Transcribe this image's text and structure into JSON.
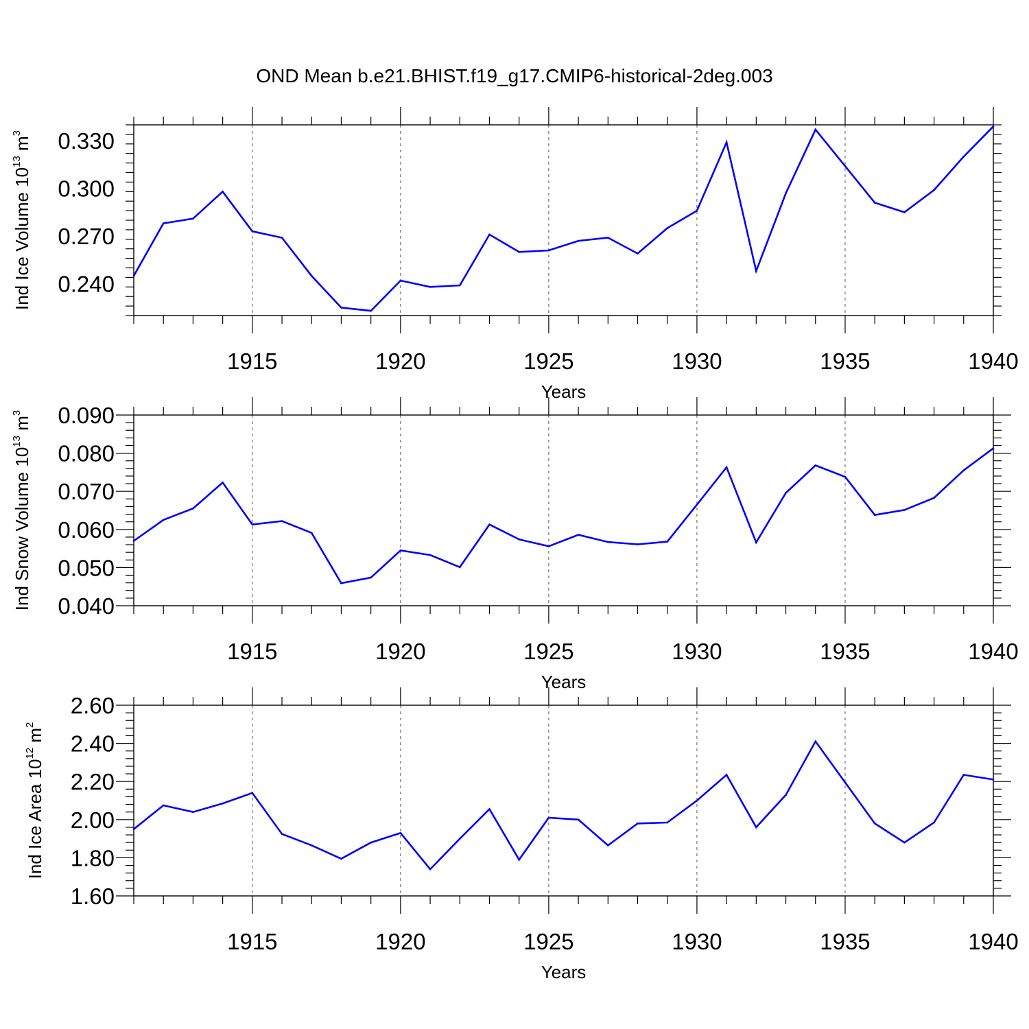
{
  "title": "OND Mean b.e21.BHIST.f19_g17.CMIP6-historical-2deg.003",
  "colors": {
    "line": "#0000ff",
    "axis": "#000000",
    "grid": "#555555"
  },
  "chart_data": [
    {
      "type": "line",
      "ylabel": {
        "main": "Ind Ice Volume 10",
        "sup": "13",
        "unit": " m",
        "unit_sup": "3"
      },
      "xlabel": "Years",
      "xlim": [
        1911,
        1940
      ],
      "ylim": [
        0.22,
        0.34
      ],
      "yticks": [
        0.24,
        0.27,
        0.3,
        0.33
      ],
      "ytick_labels": [
        "0.240",
        "0.270",
        "0.300",
        "0.330"
      ],
      "xticks": [
        1915,
        1920,
        1925,
        1930,
        1935,
        1940
      ],
      "xtick_labels": [
        "1915",
        "1920",
        "1925",
        "1930",
        "1935",
        "1940"
      ],
      "grid": "dashed vertical at labeled years",
      "x": [
        1911,
        1912,
        1913,
        1914,
        1915,
        1916,
        1917,
        1918,
        1919,
        1920,
        1921,
        1922,
        1923,
        1924,
        1925,
        1926,
        1927,
        1928,
        1929,
        1930,
        1931,
        1932,
        1933,
        1934,
        1935,
        1936,
        1937,
        1938,
        1939,
        1940
      ],
      "y": [
        0.245,
        0.278,
        0.281,
        0.298,
        0.273,
        0.269,
        0.245,
        0.225,
        0.223,
        0.242,
        0.238,
        0.239,
        0.271,
        0.26,
        0.261,
        0.267,
        0.269,
        0.259,
        0.275,
        0.286,
        0.329,
        0.248,
        0.297,
        0.337,
        0.314,
        0.291,
        0.285,
        0.299,
        0.32,
        0.339
      ]
    },
    {
      "type": "line",
      "ylabel": {
        "main": "Ind Snow Volume 10",
        "sup": "13",
        "unit": " m",
        "unit_sup": "3"
      },
      "xlabel": "Years",
      "xlim": [
        1911,
        1940
      ],
      "ylim": [
        0.04,
        0.09
      ],
      "yticks": [
        0.04,
        0.05,
        0.06,
        0.07,
        0.08,
        0.09
      ],
      "ytick_labels": [
        "0.040",
        "0.050",
        "0.060",
        "0.070",
        "0.080",
        "0.090"
      ],
      "xticks": [
        1915,
        1920,
        1925,
        1930,
        1935,
        1940
      ],
      "xtick_labels": [
        "1915",
        "1920",
        "1925",
        "1930",
        "1935",
        "1940"
      ],
      "grid": "dashed vertical at labeled years",
      "x": [
        1911,
        1912,
        1913,
        1914,
        1915,
        1916,
        1917,
        1918,
        1919,
        1920,
        1921,
        1922,
        1923,
        1924,
        1925,
        1926,
        1927,
        1928,
        1929,
        1930,
        1931,
        1932,
        1933,
        1934,
        1935,
        1936,
        1937,
        1938,
        1939,
        1940
      ],
      "y": [
        0.057,
        0.0625,
        0.0655,
        0.0723,
        0.0613,
        0.0622,
        0.0591,
        0.0459,
        0.0474,
        0.0545,
        0.0533,
        0.0501,
        0.0613,
        0.0574,
        0.0556,
        0.0586,
        0.0567,
        0.0561,
        0.0568,
        0.0665,
        0.0763,
        0.0566,
        0.0696,
        0.0768,
        0.0738,
        0.0638,
        0.0651,
        0.0683,
        0.0755,
        0.0813
      ]
    },
    {
      "type": "line",
      "ylabel": {
        "main": "Ind Ice Area 10",
        "sup": "12",
        "unit": " m",
        "unit_sup": "2"
      },
      "xlabel": "Years",
      "xlim": [
        1911,
        1940
      ],
      "ylim": [
        1.6,
        2.6
      ],
      "yticks": [
        1.6,
        1.8,
        2.0,
        2.2,
        2.4,
        2.6
      ],
      "ytick_labels": [
        "1.60",
        "1.80",
        "2.00",
        "2.20",
        "2.40",
        "2.60"
      ],
      "xticks": [
        1915,
        1920,
        1925,
        1930,
        1935,
        1940
      ],
      "xtick_labels": [
        "1915",
        "1920",
        "1925",
        "1930",
        "1935",
        "1940"
      ],
      "grid": "dashed vertical at labeled years",
      "x": [
        1911,
        1912,
        1913,
        1914,
        1915,
        1916,
        1917,
        1918,
        1919,
        1920,
        1921,
        1922,
        1923,
        1924,
        1925,
        1926,
        1927,
        1928,
        1929,
        1930,
        1931,
        1932,
        1933,
        1934,
        1935,
        1936,
        1937,
        1938,
        1939,
        1940
      ],
      "y": [
        1.95,
        2.075,
        2.04,
        2.085,
        2.14,
        1.925,
        1.865,
        1.795,
        1.88,
        1.93,
        1.74,
        1.9,
        2.055,
        1.79,
        2.01,
        2.0,
        1.865,
        1.98,
        1.985,
        2.1,
        2.235,
        1.96,
        2.13,
        2.41,
        2.195,
        1.98,
        1.88,
        1.985,
        2.235,
        2.21
      ]
    }
  ]
}
